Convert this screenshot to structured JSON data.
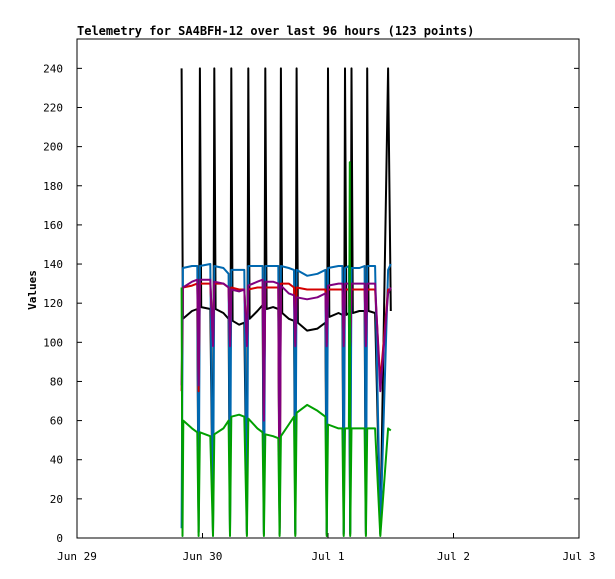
{
  "chart_data": {
    "type": "line",
    "title": "Telemetry for SA4BFH-12 over last 96 hours (123 points)",
    "ylabel": "Values",
    "xlabel": "",
    "xlim": [
      "2024-06-29T00:00",
      "2024-07-03T00:00"
    ],
    "ylim": [
      0,
      255
    ],
    "grid": false,
    "legend": "none",
    "x_ticks": [
      {
        "label": "Jun 29",
        "x": "2024-06-29T00:00"
      },
      {
        "label": "Jun 30",
        "x": "2024-06-30T00:00"
      },
      {
        "label": "Jul 1",
        "x": "2024-07-01T00:00"
      },
      {
        "label": "Jul 2",
        "x": "2024-07-02T00:00"
      },
      {
        "label": "Jul 3",
        "x": "2024-07-03T00:00"
      }
    ],
    "y_ticks": [
      0,
      20,
      40,
      60,
      80,
      100,
      120,
      140,
      160,
      180,
      200,
      220,
      240
    ],
    "series": [
      {
        "color": "#000000",
        "points": [
          [
            "2024-06-29T20:00",
            240
          ],
          [
            "2024-06-29T20:15",
            112
          ],
          [
            "2024-06-29T22:00",
            116
          ],
          [
            "2024-06-29T23:00",
            117
          ],
          [
            "2024-06-29T23:15",
            3
          ],
          [
            "2024-06-29T23:30",
            240
          ],
          [
            "2024-06-29T23:45",
            118
          ],
          [
            "2024-06-30T01:30",
            117
          ],
          [
            "2024-06-30T02:00",
            2
          ],
          [
            "2024-06-30T02:15",
            240
          ],
          [
            "2024-06-30T02:30",
            117
          ],
          [
            "2024-06-30T04:00",
            115
          ],
          [
            "2024-06-30T05:00",
            112
          ],
          [
            "2024-06-30T05:15",
            2
          ],
          [
            "2024-06-30T05:30",
            240
          ],
          [
            "2024-06-30T05:45",
            111
          ],
          [
            "2024-06-30T07:00",
            109
          ],
          [
            "2024-06-30T08:00",
            110
          ],
          [
            "2024-06-30T08:30",
            2
          ],
          [
            "2024-06-30T08:45",
            240
          ],
          [
            "2024-06-30T09:00",
            112
          ],
          [
            "2024-06-30T10:30",
            116
          ],
          [
            "2024-06-30T11:30",
            119
          ],
          [
            "2024-06-30T11:45",
            2
          ],
          [
            "2024-06-30T12:00",
            240
          ],
          [
            "2024-06-30T12:15",
            117
          ],
          [
            "2024-06-30T13:30",
            118
          ],
          [
            "2024-06-30T14:30",
            117
          ],
          [
            "2024-06-30T14:45",
            2
          ],
          [
            "2024-06-30T15:00",
            240
          ],
          [
            "2024-06-30T15:15",
            115
          ],
          [
            "2024-06-30T16:30",
            112
          ],
          [
            "2024-06-30T17:30",
            111
          ],
          [
            "2024-06-30T17:45",
            2
          ],
          [
            "2024-06-30T18:00",
            240
          ],
          [
            "2024-06-30T18:15",
            110
          ],
          [
            "2024-06-30T20:00",
            106
          ],
          [
            "2024-06-30T22:00",
            107
          ],
          [
            "2024-06-30T23:30",
            110
          ],
          [
            "2024-06-30T23:45",
            2
          ],
          [
            "2024-07-01T00:00",
            240
          ],
          [
            "2024-07-01T00:15",
            113
          ],
          [
            "2024-07-01T02:00",
            115
          ],
          [
            "2024-07-01T02:45",
            114
          ],
          [
            "2024-07-01T03:00",
            2
          ],
          [
            "2024-07-01T03:15",
            240
          ],
          [
            "2024-07-01T03:30",
            114
          ],
          [
            "2024-07-01T04:00",
            115
          ],
          [
            "2024-07-01T04:15",
            2
          ],
          [
            "2024-07-01T04:30",
            240
          ],
          [
            "2024-07-01T04:45",
            115
          ],
          [
            "2024-07-01T06:00",
            116
          ],
          [
            "2024-07-01T07:00",
            116
          ],
          [
            "2024-07-01T07:15",
            2
          ],
          [
            "2024-07-01T07:30",
            240
          ],
          [
            "2024-07-01T07:45",
            116
          ],
          [
            "2024-07-01T09:00",
            115
          ],
          [
            "2024-07-01T10:00",
            2
          ],
          [
            "2024-07-01T11:30",
            240
          ],
          [
            "2024-07-01T12:00",
            116
          ]
        ]
      },
      {
        "color": "#0068b0",
        "points": [
          [
            "2024-06-29T20:00",
            5
          ],
          [
            "2024-06-29T20:15",
            138
          ],
          [
            "2024-06-29T22:00",
            139
          ],
          [
            "2024-06-29T23:00",
            139
          ],
          [
            "2024-06-29T23:15",
            3
          ],
          [
            "2024-06-29T23:30",
            139
          ],
          [
            "2024-06-30T01:30",
            140
          ],
          [
            "2024-06-30T02:00",
            3
          ],
          [
            "2024-06-30T02:15",
            139
          ],
          [
            "2024-06-30T04:00",
            138
          ],
          [
            "2024-06-30T05:00",
            135
          ],
          [
            "2024-06-30T05:15",
            3
          ],
          [
            "2024-06-30T05:30",
            137
          ],
          [
            "2024-06-30T07:00",
            137
          ],
          [
            "2024-06-30T08:00",
            137
          ],
          [
            "2024-06-30T08:30",
            3
          ],
          [
            "2024-06-30T08:45",
            139
          ],
          [
            "2024-06-30T10:30",
            139
          ],
          [
            "2024-06-30T11:30",
            139
          ],
          [
            "2024-06-30T11:45",
            3
          ],
          [
            "2024-06-30T12:00",
            139
          ],
          [
            "2024-06-30T13:30",
            139
          ],
          [
            "2024-06-30T14:30",
            139
          ],
          [
            "2024-06-30T14:45",
            3
          ],
          [
            "2024-06-30T15:00",
            139
          ],
          [
            "2024-06-30T16:30",
            138
          ],
          [
            "2024-06-30T17:30",
            137
          ],
          [
            "2024-06-30T17:45",
            3
          ],
          [
            "2024-06-30T18:00",
            137
          ],
          [
            "2024-06-30T20:00",
            134
          ],
          [
            "2024-06-30T22:00",
            135
          ],
          [
            "2024-06-30T23:30",
            137
          ],
          [
            "2024-06-30T23:45",
            3
          ],
          [
            "2024-07-01T00:00",
            138
          ],
          [
            "2024-07-01T02:00",
            139
          ],
          [
            "2024-07-01T02:45",
            139
          ],
          [
            "2024-07-01T03:00",
            3
          ],
          [
            "2024-07-01T03:15",
            138
          ],
          [
            "2024-07-01T04:00",
            139
          ],
          [
            "2024-07-01T04:15",
            3
          ],
          [
            "2024-07-01T04:30",
            138
          ],
          [
            "2024-07-01T06:00",
            138
          ],
          [
            "2024-07-01T07:00",
            139
          ],
          [
            "2024-07-01T07:15",
            3
          ],
          [
            "2024-07-01T07:30",
            139
          ],
          [
            "2024-07-01T09:00",
            139
          ],
          [
            "2024-07-01T10:00",
            3
          ],
          [
            "2024-07-01T11:30",
            137
          ],
          [
            "2024-07-01T12:00",
            140
          ]
        ]
      },
      {
        "color": "#d40000",
        "points": [
          [
            "2024-06-29T20:00",
            75
          ],
          [
            "2024-06-29T20:15",
            128
          ],
          [
            "2024-06-29T22:00",
            129
          ],
          [
            "2024-06-29T23:00",
            130
          ],
          [
            "2024-06-29T23:15",
            75
          ],
          [
            "2024-06-29T23:30",
            130
          ],
          [
            "2024-06-30T01:30",
            130
          ],
          [
            "2024-06-30T02:00",
            100
          ],
          [
            "2024-06-30T02:15",
            130
          ],
          [
            "2024-06-30T04:00",
            130
          ],
          [
            "2024-06-30T05:00",
            128
          ],
          [
            "2024-06-30T05:15",
            100
          ],
          [
            "2024-06-30T05:30",
            128
          ],
          [
            "2024-06-30T07:00",
            127
          ],
          [
            "2024-06-30T08:00",
            127
          ],
          [
            "2024-06-30T08:30",
            100
          ],
          [
            "2024-06-30T08:45",
            127
          ],
          [
            "2024-06-30T10:30",
            128
          ],
          [
            "2024-06-30T11:30",
            128
          ],
          [
            "2024-06-30T11:45",
            63
          ],
          [
            "2024-06-30T12:00",
            128
          ],
          [
            "2024-06-30T13:30",
            128
          ],
          [
            "2024-06-30T14:30",
            128
          ],
          [
            "2024-06-30T14:45",
            5
          ],
          [
            "2024-06-30T15:00",
            130
          ],
          [
            "2024-06-30T16:30",
            130
          ],
          [
            "2024-06-30T17:30",
            128
          ],
          [
            "2024-06-30T17:45",
            100
          ],
          [
            "2024-06-30T18:00",
            128
          ],
          [
            "2024-06-30T20:00",
            127
          ],
          [
            "2024-06-30T22:00",
            127
          ],
          [
            "2024-06-30T23:30",
            127
          ],
          [
            "2024-06-30T23:45",
            100
          ],
          [
            "2024-07-01T00:00",
            127
          ],
          [
            "2024-07-01T02:00",
            127
          ],
          [
            "2024-07-01T02:45",
            127
          ],
          [
            "2024-07-01T03:00",
            100
          ],
          [
            "2024-07-01T03:15",
            127
          ],
          [
            "2024-07-01T04:00",
            127
          ],
          [
            "2024-07-01T04:15",
            100
          ],
          [
            "2024-07-01T04:30",
            127
          ],
          [
            "2024-07-01T06:00",
            127
          ],
          [
            "2024-07-01T07:00",
            127
          ],
          [
            "2024-07-01T07:15",
            100
          ],
          [
            "2024-07-01T07:30",
            127
          ],
          [
            "2024-07-01T09:00",
            127
          ],
          [
            "2024-07-01T10:00",
            80
          ],
          [
            "2024-07-01T11:30",
            127
          ],
          [
            "2024-07-01T12:00",
            127
          ]
        ]
      },
      {
        "color": "#800080",
        "points": [
          [
            "2024-06-29T20:00",
            78
          ],
          [
            "2024-06-29T20:15",
            128
          ],
          [
            "2024-06-29T22:00",
            131
          ],
          [
            "2024-06-29T23:00",
            132
          ],
          [
            "2024-06-29T23:15",
            78
          ],
          [
            "2024-06-29T23:30",
            132
          ],
          [
            "2024-06-30T01:30",
            132
          ],
          [
            "2024-06-30T02:00",
            98
          ],
          [
            "2024-06-30T02:15",
            131
          ],
          [
            "2024-06-30T04:00",
            130
          ],
          [
            "2024-06-30T05:00",
            128
          ],
          [
            "2024-06-30T05:15",
            98
          ],
          [
            "2024-06-30T05:30",
            127
          ],
          [
            "2024-06-30T07:00",
            126
          ],
          [
            "2024-06-30T08:00",
            127
          ],
          [
            "2024-06-30T08:30",
            98
          ],
          [
            "2024-06-30T08:45",
            129
          ],
          [
            "2024-06-30T10:30",
            131
          ],
          [
            "2024-06-30T11:30",
            132
          ],
          [
            "2024-06-30T11:45",
            60
          ],
          [
            "2024-06-30T12:00",
            131
          ],
          [
            "2024-06-30T13:30",
            131
          ],
          [
            "2024-06-30T14:30",
            130
          ],
          [
            "2024-06-30T14:45",
            8
          ],
          [
            "2024-06-30T15:00",
            129
          ],
          [
            "2024-06-30T16:30",
            125
          ],
          [
            "2024-06-30T17:30",
            124
          ],
          [
            "2024-06-30T17:45",
            98
          ],
          [
            "2024-06-30T18:00",
            123
          ],
          [
            "2024-06-30T20:00",
            122
          ],
          [
            "2024-06-30T22:00",
            123
          ],
          [
            "2024-06-30T23:30",
            125
          ],
          [
            "2024-06-30T23:45",
            98
          ],
          [
            "2024-07-01T00:00",
            129
          ],
          [
            "2024-07-01T02:00",
            130
          ],
          [
            "2024-07-01T02:45",
            130
          ],
          [
            "2024-07-01T03:00",
            98
          ],
          [
            "2024-07-01T03:15",
            130
          ],
          [
            "2024-07-01T04:00",
            130
          ],
          [
            "2024-07-01T04:15",
            98
          ],
          [
            "2024-07-01T04:30",
            130
          ],
          [
            "2024-07-01T06:00",
            130
          ],
          [
            "2024-07-01T07:00",
            130
          ],
          [
            "2024-07-01T07:15",
            98
          ],
          [
            "2024-07-01T07:30",
            130
          ],
          [
            "2024-07-01T09:00",
            130
          ],
          [
            "2024-07-01T10:00",
            75
          ],
          [
            "2024-07-01T11:30",
            125
          ],
          [
            "2024-07-01T12:00",
            128
          ]
        ]
      },
      {
        "color": "#00a000",
        "points": [
          [
            "2024-06-29T20:00",
            128
          ],
          [
            "2024-06-29T20:10",
            1
          ],
          [
            "2024-06-29T20:20",
            60
          ],
          [
            "2024-06-29T22:00",
            56
          ],
          [
            "2024-06-29T23:00",
            54
          ],
          [
            "2024-06-29T23:15",
            1
          ],
          [
            "2024-06-29T23:30",
            54
          ],
          [
            "2024-06-30T01:30",
            52
          ],
          [
            "2024-06-30T02:00",
            1
          ],
          [
            "2024-06-30T02:15",
            53
          ],
          [
            "2024-06-30T04:00",
            56
          ],
          [
            "2024-06-30T05:00",
            60
          ],
          [
            "2024-06-30T05:15",
            1
          ],
          [
            "2024-06-30T05:30",
            62
          ],
          [
            "2024-06-30T07:00",
            63
          ],
          [
            "2024-06-30T08:00",
            62
          ],
          [
            "2024-06-30T08:30",
            1
          ],
          [
            "2024-06-30T08:45",
            61
          ],
          [
            "2024-06-30T10:30",
            56
          ],
          [
            "2024-06-30T11:30",
            54
          ],
          [
            "2024-06-30T11:45",
            1
          ],
          [
            "2024-06-30T12:00",
            53
          ],
          [
            "2024-06-30T13:30",
            52
          ],
          [
            "2024-06-30T14:30",
            51
          ],
          [
            "2024-06-30T14:45",
            1
          ],
          [
            "2024-06-30T15:00",
            52
          ],
          [
            "2024-06-30T16:30",
            58
          ],
          [
            "2024-06-30T17:30",
            62
          ],
          [
            "2024-06-30T17:45",
            1
          ],
          [
            "2024-06-30T18:00",
            64
          ],
          [
            "2024-06-30T20:00",
            68
          ],
          [
            "2024-06-30T22:00",
            65
          ],
          [
            "2024-06-30T23:30",
            62
          ],
          [
            "2024-06-30T23:45",
            1
          ],
          [
            "2024-07-01T00:00",
            58
          ],
          [
            "2024-07-01T02:00",
            56
          ],
          [
            "2024-07-01T02:45",
            56
          ],
          [
            "2024-07-01T03:00",
            1
          ],
          [
            "2024-07-01T03:15",
            56
          ],
          [
            "2024-07-01T04:00",
            56
          ],
          [
            "2024-07-01T04:10",
            192
          ],
          [
            "2024-07-01T04:15",
            1
          ],
          [
            "2024-07-01T04:30",
            56
          ],
          [
            "2024-07-01T06:00",
            56
          ],
          [
            "2024-07-01T07:00",
            56
          ],
          [
            "2024-07-01T07:15",
            1
          ],
          [
            "2024-07-01T07:30",
            56
          ],
          [
            "2024-07-01T09:00",
            56
          ],
          [
            "2024-07-01T10:00",
            1
          ],
          [
            "2024-07-01T11:30",
            56
          ],
          [
            "2024-07-01T12:00",
            55
          ]
        ]
      }
    ]
  }
}
